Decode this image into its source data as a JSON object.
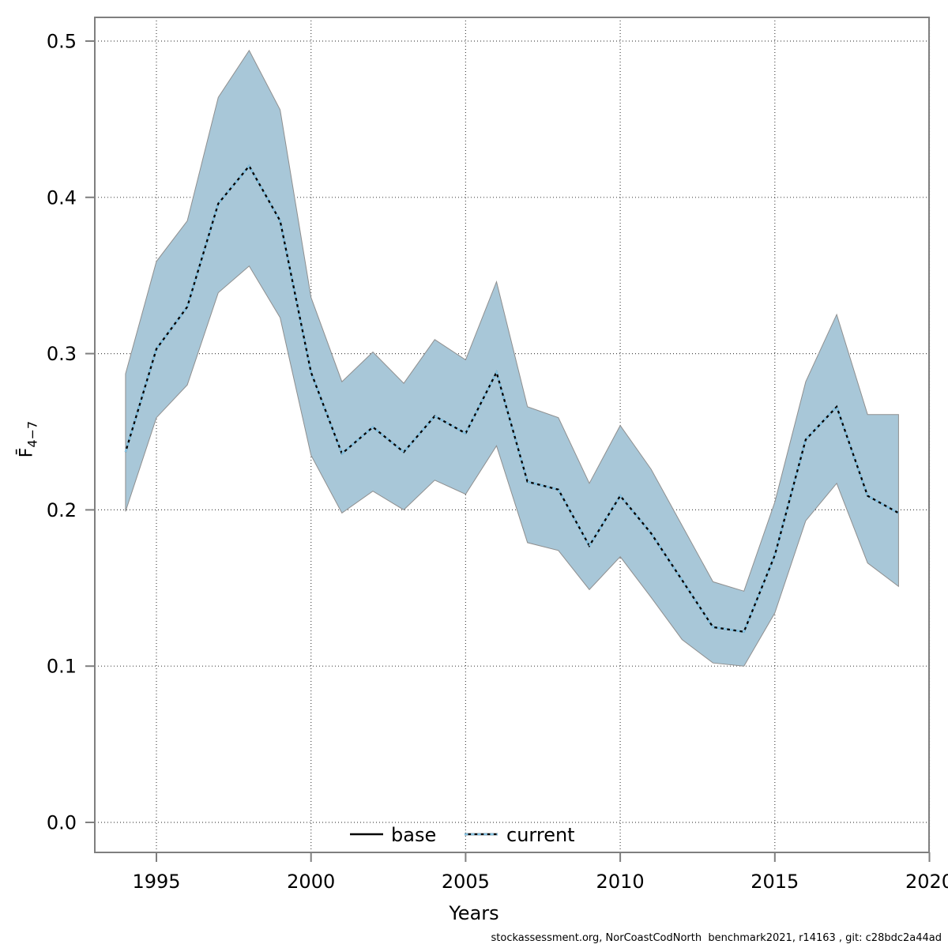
{
  "figure": {
    "xlabel": "Years",
    "ylabel_main": "F̄",
    "ylabel_sub": "4−7",
    "caption": "stockassessment.org, NorCoastCodNorth  benchmark2021, r14163 , git: c28bdc2a44ad"
  },
  "legend": {
    "items": [
      {
        "label": "base",
        "style": "solid-black"
      },
      {
        "label": "current",
        "style": "dotted-blue-over-black"
      }
    ]
  },
  "chart_data": {
    "type": "line",
    "title": "",
    "xlabel": "Years",
    "ylabel": "F̄4−7",
    "x": [
      1994,
      1995,
      1996,
      1997,
      1998,
      1999,
      2000,
      2001,
      2002,
      2003,
      2004,
      2005,
      2006,
      2007,
      2008,
      2009,
      2010,
      2011,
      2012,
      2013,
      2014,
      2015,
      2016,
      2017,
      2018,
      2019
    ],
    "series": [
      {
        "name": "base",
        "values": [
          0.237,
          0.303,
          0.33,
          0.396,
          0.42,
          0.385,
          0.288,
          0.236,
          0.253,
          0.237,
          0.26,
          0.249,
          0.288,
          0.218,
          0.213,
          0.177,
          0.209,
          0.185,
          0.155,
          0.125,
          0.122,
          0.171,
          0.245,
          0.266,
          0.209,
          0.198
        ]
      },
      {
        "name": "current",
        "values": [
          0.237,
          0.303,
          0.33,
          0.396,
          0.42,
          0.385,
          0.288,
          0.236,
          0.253,
          0.237,
          0.26,
          0.249,
          0.288,
          0.218,
          0.213,
          0.177,
          0.209,
          0.185,
          0.155,
          0.125,
          0.122,
          0.171,
          0.245,
          0.266,
          0.209,
          0.198
        ]
      }
    ],
    "band": {
      "name": "confidence-interval",
      "lower": [
        0.199,
        0.259,
        0.28,
        0.339,
        0.356,
        0.323,
        0.235,
        0.198,
        0.212,
        0.2,
        0.219,
        0.21,
        0.241,
        0.179,
        0.174,
        0.149,
        0.17,
        0.144,
        0.117,
        0.102,
        0.1,
        0.134,
        0.193,
        0.217,
        0.166,
        0.151
      ],
      "upper": [
        0.287,
        0.359,
        0.385,
        0.464,
        0.494,
        0.456,
        0.336,
        0.282,
        0.301,
        0.281,
        0.309,
        0.296,
        0.346,
        0.266,
        0.259,
        0.217,
        0.254,
        0.226,
        0.19,
        0.154,
        0.148,
        0.205,
        0.282,
        0.325,
        0.261,
        0.261
      ]
    },
    "x_ticks": [
      "1995",
      "2000",
      "2005",
      "2010",
      "2015",
      "2020"
    ],
    "y_ticks": [
      "0.0",
      "0.1",
      "0.2",
      "0.3",
      "0.4",
      "0.5"
    ],
    "xlim": [
      1993,
      2020.1
    ],
    "ylim": [
      -0.02,
      0.516
    ],
    "grid": true,
    "legend_position": "bottom-center-inside",
    "colors": {
      "band": "#a8c7d8",
      "band_edge": "#8f8f8f",
      "current": "#85c3e3",
      "base": "#000000",
      "frame": "#7f7f7f",
      "grid": "#4a4a4a",
      "text": "#000000"
    }
  }
}
